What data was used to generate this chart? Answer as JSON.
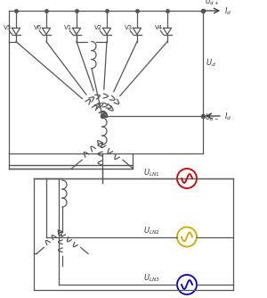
{
  "bg_color": "#ffffff",
  "line_color": "#555555",
  "thyristors": [
    "V5",
    "V6",
    "V1",
    "V2",
    "V3",
    "V4"
  ],
  "voltage_colors": [
    "#cc0000",
    "#ccaa00",
    "#0000cc"
  ],
  "voltage_labels": [
    "U_{LN1}",
    "U_{LN2}",
    "U_{LN3}"
  ]
}
